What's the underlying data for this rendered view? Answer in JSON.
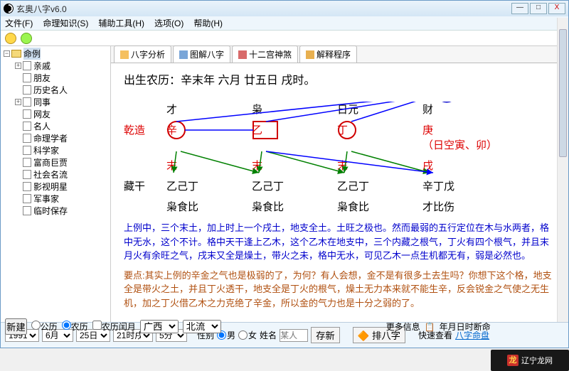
{
  "window": {
    "title": "玄奥八字v6.0",
    "buttons": {
      "min": "—",
      "max": "□",
      "close": "X"
    }
  },
  "menu": {
    "file": "文件(F)",
    "knowledge": "命理知识(S)",
    "tools": "辅助工具(H)",
    "options": "选项(O)",
    "help": "帮助(H)"
  },
  "tree": {
    "root": "命例",
    "items": [
      {
        "label": "亲戚",
        "expandable": true
      },
      {
        "label": "朋友",
        "expandable": false
      },
      {
        "label": "历史名人",
        "expandable": false
      },
      {
        "label": "同事",
        "expandable": true
      },
      {
        "label": "网友",
        "expandable": false
      },
      {
        "label": "名人",
        "expandable": false
      },
      {
        "label": "命理学者",
        "expandable": false
      },
      {
        "label": "科学家",
        "expandable": false
      },
      {
        "label": "富商巨贾",
        "expandable": false
      },
      {
        "label": "社会名流",
        "expandable": false
      },
      {
        "label": "影视明星",
        "expandable": false
      },
      {
        "label": "军事家",
        "expandable": false
      },
      {
        "label": "临时保存",
        "expandable": false
      }
    ]
  },
  "tabs": {
    "t1": "八字分析",
    "t2": "图解八字",
    "t3": "十二宫神煞",
    "t4": "解释程序"
  },
  "birth_line": "出生农历：辛末年 六月 廿五日 戌时。",
  "chart": {
    "row_top": {
      "c0": "",
      "c1": "才",
      "c2": "枭",
      "c3": "日元",
      "c4": "财"
    },
    "row_stem": {
      "c0": "乾造",
      "c1": "辛",
      "c2": "乙",
      "c3": "丁",
      "c4": "庚",
      "extra": "（日空寅、卯）"
    },
    "row_branch": {
      "c0": "",
      "c1": "末",
      "c2": "末",
      "c3": "末",
      "c4": "戌"
    },
    "row_hidden_label": "藏干",
    "row_hidden": {
      "c1": "乙己丁",
      "c2": "乙己丁",
      "c3": "乙己丁",
      "c4": "辛丁戊"
    },
    "row_gods": {
      "c1": "枭食比",
      "c2": "枭食比",
      "c3": "枭食比",
      "c4": "才比伤"
    },
    "lines_color_blue": "#0000ff",
    "lines_color_green": "#008000",
    "lines_color_red": "#d00000",
    "circle_color": "#0000cc",
    "rect_color": "#d00000"
  },
  "paragraphs": {
    "blue": "上例中，三个末土，加上时上一个戌土，地支全土。土旺之极也。然而最弱的五行定位在木与水两者，格中无水，这个不计。格中天干逢上乙木，这个乙木在地支中，三个内藏之根气，丁火有四个根气，并且末月火有余旺之气，戌末又全是燥土，带火之未，格中无水，可见乙木一点生机都无有，弱是必然也。",
    "brown": "要点:其实上例的辛金之气也是极弱的了，为何？有人会想，金不是有很多土去生吗？你想下这个格，地支全是带火之土，并且丁火透干，地支全是丁火的根气，燥土无力本来就不能生辛，反会锐金之气使之无生机，加之丁火借乙木之力克绝了辛金，所以金的气力也是十分之弱的了。"
  },
  "bottom": {
    "year": "1991",
    "month": "6月",
    "day": "25日",
    "hour": "21时戌",
    "minute": "5分",
    "new_btn": "新建",
    "cal_solar": "公历",
    "cal_lunar": "农历",
    "leap": "农历闰月",
    "province": "广西",
    "city": "北流",
    "gender_label": "性别",
    "male": "男",
    "female": "女",
    "surname_label": "姓名",
    "surname_ph": "某人",
    "save_btn": "存新",
    "arrange_btn": "排八字",
    "quick_label": "快速查看",
    "quick_link": "八字命盘",
    "more_label": "更多信息",
    "more_icon": "📋",
    "more_text": "年月日时断命"
  },
  "watermark": "辽宁龙网"
}
